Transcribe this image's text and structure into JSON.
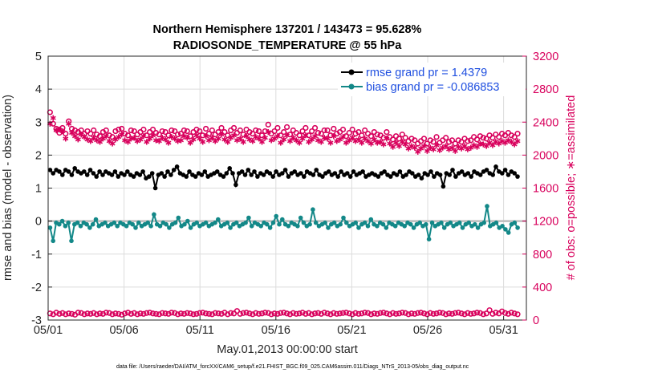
{
  "chart_data": {
    "type": "line",
    "title": "Northern Hemisphere 137201 / 143473 = 95.628%",
    "subtitle": "RADIOSONDE_TEMPERATURE @ 55 hPa",
    "xlabel": "May.01,2013 00:00:00 start",
    "ylabel_left": "rmse and bias (model - observation)",
    "ylabel_right": "# of obs: o=possible; ∗=assimilated",
    "footer": "data file: /Users/raeder/DAI/ATM_forcXX/CAM6_setup/f.e21.FHIST_BGC.f09_025.CAM6assim.011/Diags_NTrS_2013-05/obs_diag_output.nc",
    "x_range_days": [
      0,
      31.5
    ],
    "x_ticks": [
      {
        "day": 0,
        "label": "05/01"
      },
      {
        "day": 5,
        "label": "05/06"
      },
      {
        "day": 10,
        "label": "05/11"
      },
      {
        "day": 15,
        "label": "05/16"
      },
      {
        "day": 20,
        "label": "05/21"
      },
      {
        "day": 25,
        "label": "05/26"
      },
      {
        "day": 30,
        "label": "05/31"
      }
    ],
    "y_left_range": [
      -3,
      5
    ],
    "y_left_ticks": [
      "-3",
      "-2",
      "-1",
      "0",
      "1",
      "2",
      "3",
      "4",
      "5"
    ],
    "y_right_range": [
      0,
      3200
    ],
    "y_right_ticks": [
      "0",
      "400",
      "800",
      "1200",
      "1600",
      "2000",
      "2400",
      "2800",
      "3200"
    ],
    "grid": true,
    "legend_position": "top-right",
    "legend": [
      {
        "label": "rmse grand pr = 1.4379",
        "color": "#000000"
      },
      {
        "label": "bias grand pr = -0.086853",
        "color": "#138888"
      }
    ],
    "time_step_days": 0.25,
    "series": [
      {
        "name": "rmse grand pr = 1.4379",
        "axis": "left",
        "color": "#000000",
        "values": [
          1.55,
          1.45,
          1.55,
          1.5,
          1.4,
          1.55,
          1.5,
          1.4,
          1.6,
          1.5,
          1.45,
          1.5,
          1.4,
          1.55,
          1.45,
          1.35,
          1.5,
          1.4,
          1.5,
          1.45,
          1.4,
          1.5,
          1.35,
          1.45,
          1.4,
          1.5,
          1.4,
          1.35,
          1.45,
          1.4,
          1.5,
          1.3,
          1.35,
          1.45,
          1.0,
          1.4,
          1.45,
          1.35,
          1.5,
          1.4,
          1.55,
          1.65,
          1.45,
          1.4,
          1.35,
          1.5,
          1.4,
          1.35,
          1.45,
          1.4,
          1.5,
          1.35,
          1.4,
          1.45,
          1.5,
          1.4,
          1.35,
          1.45,
          1.6,
          1.45,
          1.1,
          1.45,
          1.5,
          1.4,
          1.55,
          1.4,
          1.5,
          1.35,
          1.45,
          1.4,
          1.5,
          1.45,
          1.35,
          1.5,
          1.4,
          1.45,
          1.55,
          1.35,
          1.45,
          1.5,
          1.4,
          1.45,
          1.35,
          1.5,
          1.45,
          1.4,
          1.55,
          1.4,
          1.35,
          1.45,
          1.5,
          1.4,
          1.45,
          1.35,
          1.5,
          1.4,
          1.45,
          1.35,
          1.5,
          1.4,
          1.45,
          1.5,
          1.35,
          1.4,
          1.45,
          1.4,
          1.35,
          1.45,
          1.5,
          1.4,
          1.35,
          1.45,
          1.4,
          1.5,
          1.35,
          1.4,
          1.5,
          1.45,
          1.35,
          1.4,
          1.3,
          1.45,
          1.4,
          1.5,
          1.35,
          1.45,
          1.4,
          1.05,
          1.45,
          1.4,
          1.55,
          1.35,
          1.45,
          1.5,
          1.4,
          1.45,
          1.35,
          1.5,
          1.45,
          1.4,
          1.5,
          1.55,
          1.45,
          1.4,
          1.65,
          1.5,
          1.45,
          1.55,
          1.4,
          1.5,
          1.45,
          1.35
        ],
        "markers": true
      },
      {
        "name": "bias grand pr = -0.086853",
        "axis": "left",
        "color": "#138888",
        "values": [
          -0.2,
          -0.6,
          -0.05,
          -0.1,
          0.0,
          -0.15,
          -0.05,
          -0.6,
          -0.1,
          -0.05,
          -0.15,
          -0.05,
          -0.1,
          -0.2,
          -0.1,
          0.05,
          -0.15,
          -0.1,
          -0.05,
          -0.15,
          -0.1,
          -0.05,
          -0.15,
          -0.05,
          -0.1,
          -0.15,
          -0.05,
          -0.1,
          -0.2,
          -0.05,
          -0.15,
          -0.1,
          -0.05,
          -0.15,
          0.2,
          -0.1,
          -0.15,
          -0.05,
          -0.1,
          -0.2,
          -0.1,
          -0.05,
          0.1,
          -0.15,
          -0.1,
          0.0,
          -0.2,
          -0.1,
          -0.05,
          -0.15,
          -0.1,
          -0.05,
          -0.15,
          -0.1,
          -0.05,
          0.05,
          -0.15,
          -0.1,
          -0.05,
          -0.2,
          -0.1,
          -0.05,
          -0.15,
          -0.1,
          -0.05,
          0.1,
          -0.15,
          -0.05,
          -0.1,
          -0.15,
          -0.05,
          -0.1,
          -0.2,
          -0.05,
          0.15,
          -0.1,
          0.05,
          -0.1,
          -0.15,
          -0.05,
          -0.1,
          -0.15,
          0.1,
          -0.05,
          -0.15,
          -0.1,
          0.35,
          -0.05,
          -0.15,
          -0.1,
          -0.05,
          -0.2,
          -0.1,
          -0.05,
          -0.15,
          -0.1,
          0.1,
          -0.05,
          -0.15,
          -0.1,
          -0.05,
          -0.2,
          -0.1,
          -0.05,
          -0.15,
          0.05,
          -0.1,
          -0.15,
          -0.05,
          -0.1,
          -0.2,
          -0.05,
          -0.1,
          -0.15,
          -0.05,
          -0.1,
          -0.15,
          -0.05,
          -0.1,
          -0.2,
          -0.1,
          -0.05,
          -0.15,
          -0.1,
          -0.55,
          -0.05,
          -0.15,
          -0.1,
          -0.05,
          -0.2,
          -0.1,
          -0.05,
          -0.15,
          -0.1,
          -0.05,
          -0.2,
          -0.1,
          -0.05,
          -0.15,
          -0.1,
          -0.2,
          -0.1,
          -0.05,
          0.45,
          -0.15,
          -0.1,
          -0.05,
          -0.2,
          -0.15,
          -0.25,
          -0.35,
          -0.1,
          -0.05,
          -0.2
        ],
        "markers": true
      },
      {
        "name": "",
        "axis": "right",
        "color": "#d8005c",
        "marker": "o",
        "values": [
          80,
          70,
          90,
          75,
          85,
          70,
          80,
          75,
          65,
          90,
          85,
          70,
          80,
          75,
          85,
          70,
          80,
          75,
          90,
          85,
          70,
          80,
          75,
          65,
          80,
          90,
          75,
          85,
          70,
          80,
          75,
          85,
          90,
          80,
          75,
          70,
          85,
          80,
          75,
          90,
          85,
          70,
          80,
          75,
          85,
          80,
          70,
          75,
          85,
          90,
          80,
          75,
          70,
          85,
          80,
          75,
          90,
          70,
          85,
          80,
          110,
          75,
          85,
          90,
          80,
          70,
          85,
          75,
          80,
          90,
          85,
          70,
          80,
          75,
          85,
          90,
          80,
          70,
          85,
          75,
          80,
          90,
          75,
          85,
          70,
          80,
          85,
          75,
          90,
          80,
          70,
          85,
          75,
          80,
          85,
          90,
          80,
          70,
          85,
          75,
          80,
          90,
          85,
          70,
          80,
          75,
          85,
          90,
          80,
          70,
          85,
          75,
          80,
          90,
          85,
          70,
          80,
          75,
          85,
          90,
          80,
          70,
          85,
          75,
          80,
          90,
          85,
          70,
          80,
          75,
          85,
          90,
          80,
          70,
          85,
          75,
          80,
          90,
          85,
          70,
          80,
          120,
          75,
          90,
          80,
          105,
          85,
          75,
          90,
          80,
          70
        ]
      },
      {
        "name": "",
        "axis": "right",
        "color": "#d8005c",
        "marker": "*",
        "values": [
          2380,
          2450,
          2300,
          2310,
          2290,
          2200,
          2380,
          2270,
          2230,
          2190,
          2250,
          2220,
          2190,
          2170,
          2210,
          2180,
          2160,
          2200,
          2230,
          2170,
          2140,
          2190,
          2220,
          2250,
          2180,
          2160,
          2200,
          2210,
          2170,
          2190,
          2230,
          2160,
          2200,
          2240,
          2180,
          2170,
          2210,
          2190,
          2150,
          2220,
          2200,
          2170,
          2180,
          2230,
          2210,
          2150,
          2190,
          2240,
          2200,
          2160,
          2230,
          2180,
          2210,
          2170,
          2200,
          2250,
          2190,
          2160,
          2210,
          2240,
          2180,
          2200,
          2160,
          2230,
          2190,
          2170,
          2220,
          2200,
          2160,
          2210,
          2280,
          2180,
          2200,
          2230,
          2150,
          2190,
          2240,
          2170,
          2210,
          2180,
          2150,
          2200,
          2240,
          2160,
          2190,
          2230,
          2180,
          2160,
          2210,
          2200,
          2150,
          2230,
          2170,
          2190,
          2220,
          2150,
          2180,
          2210,
          2170,
          2190,
          2150,
          2200,
          2170,
          2140,
          2190,
          2150,
          2160,
          2130,
          2200,
          2140,
          2100,
          2150,
          2110,
          2160,
          2130,
          2080,
          2110,
          2090,
          2040,
          2080,
          2110,
          2050,
          2090,
          2070,
          2120,
          2060,
          2090,
          2110,
          2070,
          2090,
          2050,
          2100,
          2080,
          2110,
          2070,
          2090,
          2120,
          2100,
          2140,
          2130,
          2110,
          2150,
          2120,
          2160,
          2140,
          2170,
          2150,
          2180,
          2160,
          2130,
          2170
        ]
      },
      {
        "name": "",
        "axis": "right",
        "color": "#d8005c",
        "marker": "o-possible",
        "values": [
          2520,
          2380,
          2320,
          2270,
          2330,
          2260,
          2410,
          2320,
          2300,
          2280,
          2300,
          2260,
          2290,
          2260,
          2300,
          2250,
          2230,
          2280,
          2300,
          2240,
          2220,
          2290,
          2310,
          2320,
          2260,
          2240,
          2300,
          2290,
          2250,
          2280,
          2310,
          2240,
          2280,
          2310,
          2270,
          2250,
          2290,
          2280,
          2240,
          2300,
          2290,
          2250,
          2260,
          2300,
          2290,
          2230,
          2280,
          2310,
          2290,
          2240,
          2320,
          2260,
          2300,
          2250,
          2280,
          2330,
          2280,
          2240,
          2300,
          2330,
          2270,
          2300,
          2250,
          2310,
          2280,
          2260,
          2300,
          2290,
          2240,
          2290,
          2370,
          2260,
          2290,
          2330,
          2240,
          2280,
          2340,
          2250,
          2300,
          2270,
          2240,
          2290,
          2330,
          2240,
          2290,
          2330,
          2270,
          2260,
          2300,
          2300,
          2240,
          2320,
          2260,
          2280,
          2310,
          2230,
          2270,
          2310,
          2260,
          2280,
          2240,
          2300,
          2260,
          2230,
          2280,
          2250,
          2240,
          2210,
          2280,
          2220,
          2190,
          2230,
          2200,
          2250,
          2210,
          2170,
          2200,
          2180,
          2140,
          2170,
          2200,
          2140,
          2180,
          2160,
          2220,
          2150,
          2180,
          2210,
          2160,
          2180,
          2140,
          2180,
          2160,
          2200,
          2170,
          2180,
          2220,
          2190,
          2230,
          2210,
          2200,
          2240,
          2210,
          2250,
          2220,
          2260,
          2240,
          2270,
          2240,
          2220,
          2260
        ]
      }
    ]
  }
}
